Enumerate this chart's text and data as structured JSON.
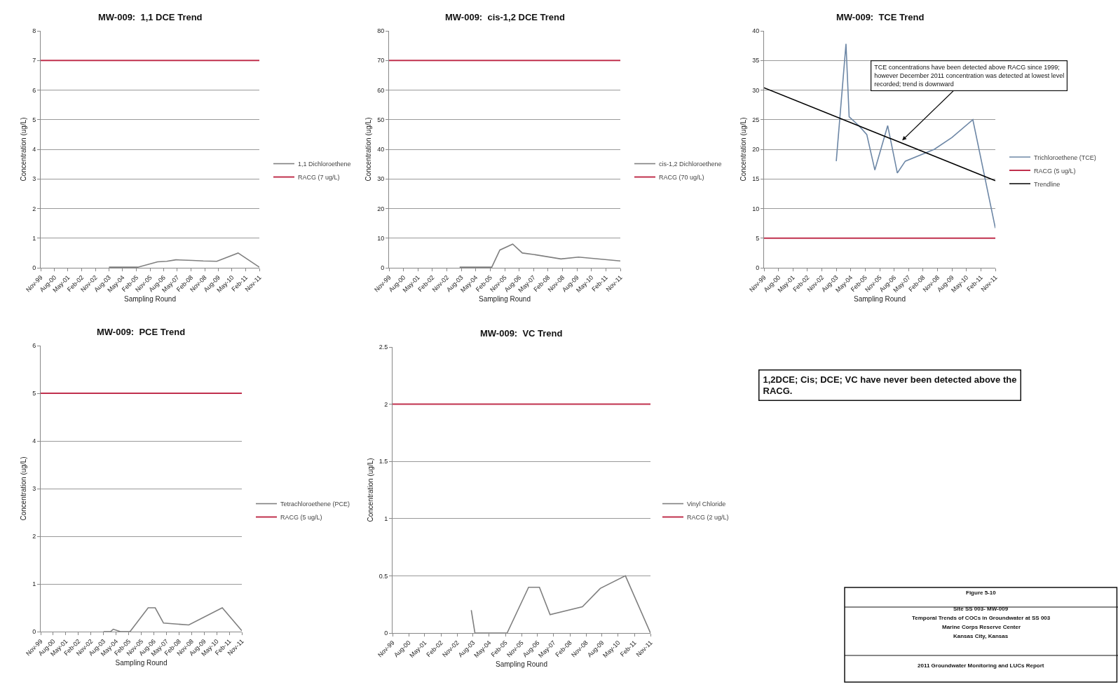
{
  "chart_data": [
    {
      "type": "line",
      "title": "MW-009:  1,1 DCE Trend",
      "xlabel": "Sampling Round",
      "ylabel": "Concentration (ug/L)",
      "xlim": [
        "1999-11",
        "2011-11"
      ],
      "xticks": [
        {
          "value": "1999-11",
          "label": "Nov-99"
        },
        {
          "value": "2000-08",
          "label": "Aug-00"
        },
        {
          "value": "2001-05",
          "label": "May-01"
        },
        {
          "value": "2002-02",
          "label": "Feb-02"
        },
        {
          "value": "2002-11",
          "label": "Nov-02"
        },
        {
          "value": "2003-08",
          "label": "Aug-03"
        },
        {
          "value": "2004-05",
          "label": "May-04"
        },
        {
          "value": "2005-02",
          "label": "Feb-05"
        },
        {
          "value": "2005-11",
          "label": "Nov-05"
        },
        {
          "value": "2006-08",
          "label": "Aug-06"
        },
        {
          "value": "2007-05",
          "label": "May-07"
        },
        {
          "value": "2008-02",
          "label": "Feb-08"
        },
        {
          "value": "2008-11",
          "label": "Nov-08"
        },
        {
          "value": "2009-08",
          "label": "Aug-09"
        },
        {
          "value": "2010-05",
          "label": "May-10"
        },
        {
          "value": "2011-02",
          "label": "Feb-11"
        },
        {
          "value": "2011-11",
          "label": "Nov-11"
        }
      ],
      "ylim": [
        0,
        8
      ],
      "yticks": [
        0,
        1,
        2,
        3,
        4,
        5,
        6,
        7,
        8
      ],
      "grid": "y",
      "legend": "right",
      "marker": "none",
      "line_style": "solid",
      "series": [
        {
          "name": "1,1 Dichloroethene",
          "color": "#7f7f7f",
          "x": [
            "2003-08",
            "2004-04",
            "2005-03",
            "2006-04",
            "2006-10",
            "2007-04",
            "2008-03",
            "2008-10",
            "2009-07",
            "2010-09",
            "2011-11"
          ],
          "values": [
            0.02,
            0.02,
            0.02,
            0.2,
            0.22,
            0.27,
            0.25,
            0.23,
            0.22,
            0.5,
            0.02
          ]
        }
      ],
      "ref_lines": [
        {
          "axis": "y",
          "value": 7,
          "label": "RACG (7 ug/L)",
          "color": "#c0304d"
        }
      ]
    },
    {
      "type": "line",
      "title": "MW-009:  cis-1,2 DCE Trend",
      "xlabel": "Sampling Round",
      "ylabel": "Concentration (ug/L)",
      "xlim": [
        "1999-11",
        "2011-11"
      ],
      "xticks": [
        {
          "value": "1999-11",
          "label": "Nov-99"
        },
        {
          "value": "2000-08",
          "label": "Aug-00"
        },
        {
          "value": "2001-05",
          "label": "May-01"
        },
        {
          "value": "2002-02",
          "label": "Feb-02"
        },
        {
          "value": "2002-11",
          "label": "Nov-02"
        },
        {
          "value": "2003-08",
          "label": "Aug-03"
        },
        {
          "value": "2004-05",
          "label": "May-04"
        },
        {
          "value": "2005-02",
          "label": "Feb-05"
        },
        {
          "value": "2005-11",
          "label": "Nov-05"
        },
        {
          "value": "2006-08",
          "label": "Aug-06"
        },
        {
          "value": "2007-05",
          "label": "May-07"
        },
        {
          "value": "2008-02",
          "label": "Feb-08"
        },
        {
          "value": "2008-11",
          "label": "Nov-08"
        },
        {
          "value": "2009-08",
          "label": "Aug-09"
        },
        {
          "value": "2010-05",
          "label": "May-10"
        },
        {
          "value": "2011-02",
          "label": "Feb-11"
        },
        {
          "value": "2011-11",
          "label": "Nov-11"
        }
      ],
      "ylim": [
        0,
        80
      ],
      "yticks": [
        0,
        10,
        20,
        30,
        40,
        50,
        60,
        70,
        80
      ],
      "grid": "y",
      "legend": "right",
      "marker": "none",
      "line_style": "solid",
      "series": [
        {
          "name": "cis-1,2 Dichloroethene",
          "color": "#7f7f7f",
          "x": [
            "2003-07",
            "2004-04",
            "2005-03",
            "2005-08",
            "2006-04",
            "2006-10",
            "2007-05",
            "2008-10",
            "2009-09",
            "2011-11"
          ],
          "values": [
            0.2,
            0.2,
            0.2,
            6,
            8,
            5,
            4.5,
            3,
            3.6,
            2.3
          ]
        }
      ],
      "ref_lines": [
        {
          "axis": "y",
          "value": 70,
          "label": "RACG (70 ug/L)",
          "color": "#c0304d"
        }
      ]
    },
    {
      "type": "line",
      "title": "MW-009:  TCE Trend",
      "xlabel": "Sampling Round",
      "ylabel": "Concentration (ug/L)",
      "xlim": [
        "1999-11",
        "2011-11"
      ],
      "xticks": [
        {
          "value": "1999-11",
          "label": "Nov-99"
        },
        {
          "value": "2000-08",
          "label": "Aug-00"
        },
        {
          "value": "2001-05",
          "label": "May-01"
        },
        {
          "value": "2002-02",
          "label": "Feb-02"
        },
        {
          "value": "2002-11",
          "label": "Nov-02"
        },
        {
          "value": "2003-08",
          "label": "Aug-03"
        },
        {
          "value": "2004-05",
          "label": "May-04"
        },
        {
          "value": "2005-02",
          "label": "Feb-05"
        },
        {
          "value": "2005-11",
          "label": "Nov-05"
        },
        {
          "value": "2006-08",
          "label": "Aug-06"
        },
        {
          "value": "2007-05",
          "label": "May-07"
        },
        {
          "value": "2008-02",
          "label": "Feb-08"
        },
        {
          "value": "2008-11",
          "label": "Nov-08"
        },
        {
          "value": "2009-08",
          "label": "Aug-09"
        },
        {
          "value": "2010-05",
          "label": "May-10"
        },
        {
          "value": "2011-02",
          "label": "Feb-11"
        },
        {
          "value": "2011-11",
          "label": "Nov-11"
        }
      ],
      "ylim": [
        0,
        40
      ],
      "yticks": [
        0,
        5,
        10,
        15,
        20,
        25,
        30,
        35,
        40
      ],
      "grid": "y",
      "legend": "right",
      "marker": "none",
      "line_style": "solid",
      "series": [
        {
          "name": "Trichloroethene (TCE)",
          "color": "#6d87a6",
          "x": [
            "2003-08",
            "2004-02",
            "2004-04",
            "2004-10",
            "2005-03",
            "2005-08",
            "2006-04",
            "2006-10",
            "2007-03",
            "2008-09",
            "2009-08",
            "2010-09",
            "2011-11"
          ],
          "values": [
            18,
            37.8,
            25.5,
            24,
            22.5,
            16.5,
            24,
            16,
            18,
            20,
            22,
            25,
            6.7
          ]
        },
        {
          "name": "Trendline",
          "type": "line",
          "color": "#000000",
          "x": [
            "1999-11",
            "2011-11"
          ],
          "values": [
            30.4,
            14.7
          ]
        }
      ],
      "ref_lines": [
        {
          "axis": "y",
          "value": 5,
          "label": "RACG (5 ug/L)",
          "color": "#c0304d"
        }
      ],
      "annotations": [
        {
          "text": "TCE concentrations have been detected above RACG since 1999; however December 2011 concentration was detected at lowest level recorded; trend is downward",
          "x": "2007-01",
          "y": 21.5
        }
      ]
    },
    {
      "type": "line",
      "title": "MW-009:  PCE Trend",
      "xlabel": "Sampling Round",
      "ylabel": "Concentration (ug/L)",
      "xlim": [
        "1999-11",
        "2011-11"
      ],
      "xticks": [
        {
          "value": "1999-11",
          "label": "Nov-99"
        },
        {
          "value": "2000-08",
          "label": "Aug-00"
        },
        {
          "value": "2001-05",
          "label": "May-01"
        },
        {
          "value": "2002-02",
          "label": "Feb-02"
        },
        {
          "value": "2002-11",
          "label": "Nov-02"
        },
        {
          "value": "2003-08",
          "label": "Aug-03"
        },
        {
          "value": "2004-05",
          "label": "May-04"
        },
        {
          "value": "2005-02",
          "label": "Feb-05"
        },
        {
          "value": "2005-11",
          "label": "Nov-05"
        },
        {
          "value": "2006-08",
          "label": "Aug-06"
        },
        {
          "value": "2007-05",
          "label": "May-07"
        },
        {
          "value": "2008-02",
          "label": "Feb-08"
        },
        {
          "value": "2008-11",
          "label": "Nov-08"
        },
        {
          "value": "2009-08",
          "label": "Aug-09"
        },
        {
          "value": "2010-05",
          "label": "May-10"
        },
        {
          "value": "2011-02",
          "label": "Feb-11"
        },
        {
          "value": "2011-11",
          "label": "Nov-11"
        }
      ],
      "ylim": [
        0,
        6
      ],
      "yticks": [
        0,
        1,
        2,
        3,
        4,
        5,
        6
      ],
      "grid": "y",
      "legend": "right",
      "marker": "none",
      "line_style": "solid",
      "series": [
        {
          "name": "Tetrachloroethene (PCE)",
          "color": "#7f7f7f",
          "x": [
            "2003-08",
            "2004-01",
            "2004-03",
            "2004-08",
            "2005-03",
            "2006-04",
            "2006-09",
            "2007-03",
            "2008-09",
            "2010-09",
            "2011-11"
          ],
          "values": [
            0,
            0,
            0.05,
            0,
            0,
            0.5,
            0.5,
            0.18,
            0.14,
            0.5,
            0.02
          ]
        }
      ],
      "ref_lines": [
        {
          "axis": "y",
          "value": 5,
          "label": "RACG (5 ug/L)",
          "color": "#c0304d"
        }
      ]
    },
    {
      "type": "line",
      "title": "MW-009:  VC Trend",
      "xlabel": "Sampling Round",
      "ylabel": "Concentration (ug/L)",
      "xlim": [
        "1999-11",
        "2011-11"
      ],
      "xticks": [
        {
          "value": "1999-11",
          "label": "Nov-99"
        },
        {
          "value": "2000-08",
          "label": "Aug-00"
        },
        {
          "value": "2001-05",
          "label": "May-01"
        },
        {
          "value": "2002-02",
          "label": "Feb-02"
        },
        {
          "value": "2002-11",
          "label": "Nov-02"
        },
        {
          "value": "2003-08",
          "label": "Aug-03"
        },
        {
          "value": "2004-05",
          "label": "May-04"
        },
        {
          "value": "2005-02",
          "label": "Feb-05"
        },
        {
          "value": "2005-11",
          "label": "Nov-05"
        },
        {
          "value": "2006-08",
          "label": "Aug-06"
        },
        {
          "value": "2007-05",
          "label": "May-07"
        },
        {
          "value": "2008-02",
          "label": "Feb-08"
        },
        {
          "value": "2008-11",
          "label": "Nov-08"
        },
        {
          "value": "2009-08",
          "label": "Aug-09"
        },
        {
          "value": "2010-05",
          "label": "May-10"
        },
        {
          "value": "2011-02",
          "label": "Feb-11"
        },
        {
          "value": "2011-11",
          "label": "Nov-11"
        }
      ],
      "ylim": [
        0,
        2.5
      ],
      "yticks": [
        0,
        0.5,
        1,
        1.5,
        2,
        2.5
      ],
      "grid": "y",
      "legend": "right",
      "marker": "none",
      "line_style": "solid",
      "series": [
        {
          "name": "Vinyl Chloride",
          "color": "#7f7f7f",
          "x": [
            "2003-07",
            "2003-09",
            "2005-03",
            "2006-03",
            "2006-09",
            "2007-03",
            "2008-09",
            "2009-07",
            "2010-09",
            "2011-11"
          ],
          "values": [
            0.2,
            0,
            0,
            0.4,
            0.4,
            0.16,
            0.23,
            0.39,
            0.5,
            0
          ]
        }
      ],
      "ref_lines": [
        {
          "axis": "y",
          "value": 2,
          "label": "RACG (2 ug/L)",
          "color": "#c0304d"
        }
      ]
    },
    {
      "type": "other",
      "annotations": [
        "1,2DCE; Cis; DCE; VC have never been detected above the RACG."
      ]
    },
    {
      "type": "other",
      "annotations": [
        "Figure 5-10",
        "Site SS 003- MW-009",
        "Temporal Trends of COCs in Groundwater at SS 003",
        "Marine Corps Reserve Center",
        "Kansas City, Kansas",
        "2011 Groundwater Monitoring and LUCs Report"
      ]
    }
  ]
}
